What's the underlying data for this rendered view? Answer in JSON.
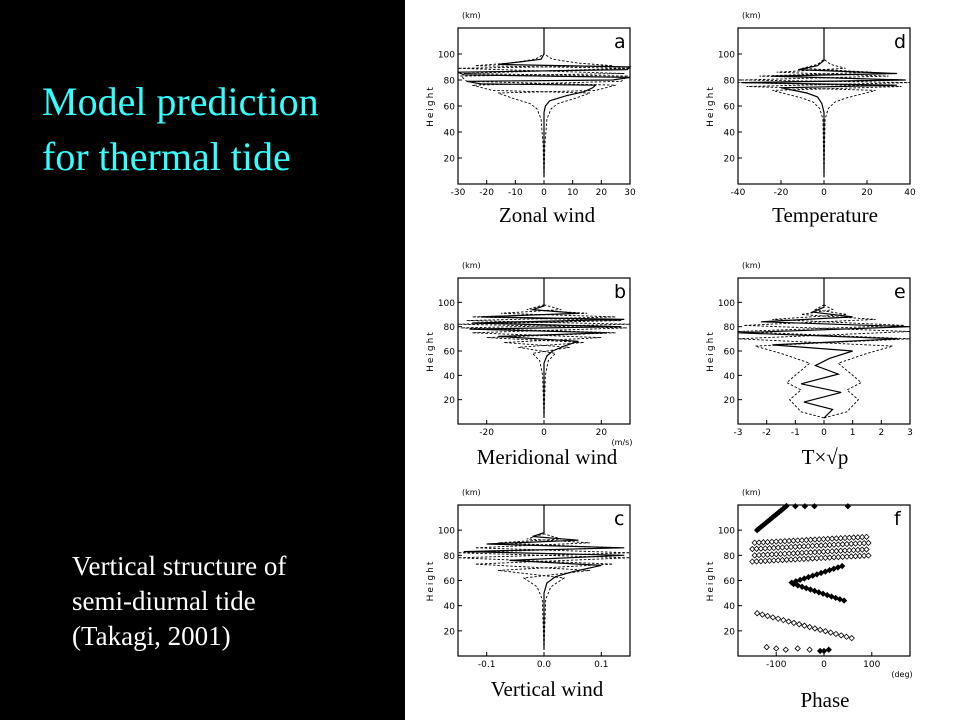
{
  "slide": {
    "title_line1": "Model prediction",
    "title_line2": "for thermal tide",
    "subtitle_line1": "Vertical structure of",
    "subtitle_line2": "semi-diurnal tide",
    "subtitle_line3": "(Takagi, 2001)",
    "colors": {
      "background": "#000000",
      "title": "#33ffff",
      "subtitle": "#ffffff",
      "figure_bg": "#ffffff"
    }
  },
  "chart_data": [
    {
      "type": "line",
      "panel_letter": "a",
      "caption": "Zonal wind",
      "height_unit": "(km)",
      "ylabel": "Height",
      "xunit": "",
      "xlim": [
        -30,
        30
      ],
      "xticks": [
        -30,
        -20,
        -10,
        0,
        10,
        20,
        30
      ],
      "ylim": [
        0,
        120
      ],
      "yticks": [
        20,
        40,
        60,
        80,
        100
      ],
      "series": [
        {
          "style": "solid",
          "points": [
            [
              0,
              5
            ],
            [
              0,
              30
            ],
            [
              0,
              55
            ],
            [
              0.5,
              60
            ],
            [
              2,
              64
            ],
            [
              8,
              68
            ],
            [
              14,
              71
            ],
            [
              17,
              74
            ],
            [
              18,
              76
            ],
            [
              -22,
              77
            ],
            [
              -27,
              79
            ],
            [
              24,
              80
            ],
            [
              30,
              82
            ],
            [
              -28,
              84
            ],
            [
              -30,
              86
            ],
            [
              29,
              88
            ],
            [
              30,
              90
            ],
            [
              -16,
              92
            ],
            [
              -8,
              94
            ],
            [
              -1,
              96
            ],
            [
              0,
              100
            ],
            [
              0,
              120
            ]
          ]
        },
        {
          "style": "dashed",
          "points": [
            [
              0,
              5
            ],
            [
              0.3,
              30
            ],
            [
              1,
              50
            ],
            [
              2.5,
              58
            ],
            [
              5,
              62
            ],
            [
              11,
              66
            ],
            [
              16,
              70
            ],
            [
              -18,
              72
            ],
            [
              -25,
              76
            ],
            [
              27,
              79
            ],
            [
              29,
              83
            ],
            [
              -28,
              85
            ],
            [
              30,
              89
            ],
            [
              -24,
              91
            ],
            [
              -12,
              93
            ],
            [
              -3,
              96
            ],
            [
              0,
              100
            ]
          ]
        },
        {
          "style": "dashed",
          "points": [
            [
              0,
              5
            ],
            [
              -0.3,
              30
            ],
            [
              -1,
              50
            ],
            [
              -2.5,
              58
            ],
            [
              -5,
              62
            ],
            [
              -11,
              66
            ],
            [
              -16,
              70
            ],
            [
              18,
              72
            ],
            [
              25,
              76
            ],
            [
              -27,
              79
            ],
            [
              -29,
              83
            ],
            [
              28,
              85
            ],
            [
              -30,
              89
            ],
            [
              24,
              91
            ],
            [
              12,
              93
            ],
            [
              3,
              96
            ],
            [
              0,
              100
            ]
          ]
        }
      ]
    },
    {
      "type": "line",
      "panel_letter": "d",
      "caption": "Temperature",
      "height_unit": "(km)",
      "ylabel": "Height",
      "xunit": "",
      "xlim": [
        -40,
        40
      ],
      "xticks": [
        -40,
        -20,
        0,
        20,
        40
      ],
      "ylim": [
        0,
        120
      ],
      "yticks": [
        20,
        40,
        60,
        80,
        100
      ],
      "series": [
        {
          "style": "solid",
          "points": [
            [
              0,
              5
            ],
            [
              0,
              55
            ],
            [
              -1,
              62
            ],
            [
              -3,
              67
            ],
            [
              -8,
              70
            ],
            [
              -14,
              72
            ],
            [
              -20,
              74
            ],
            [
              34,
              76
            ],
            [
              -38,
              78
            ],
            [
              38,
              80
            ],
            [
              -24,
              83
            ],
            [
              34,
              85
            ],
            [
              -12,
              88
            ],
            [
              -3,
              91
            ],
            [
              0,
              95
            ],
            [
              0,
              120
            ]
          ]
        },
        {
          "style": "dashed",
          "points": [
            [
              0,
              5
            ],
            [
              0.5,
              50
            ],
            [
              2,
              58
            ],
            [
              5,
              63
            ],
            [
              10,
              66
            ],
            [
              17,
              69
            ],
            [
              24,
              72
            ],
            [
              -36,
              75
            ],
            [
              40,
              78
            ],
            [
              -38,
              80
            ],
            [
              30,
              83
            ],
            [
              -22,
              86
            ],
            [
              10,
              89
            ],
            [
              3,
              92
            ],
            [
              0,
              96
            ]
          ]
        },
        {
          "style": "dashed",
          "points": [
            [
              0,
              5
            ],
            [
              -0.5,
              50
            ],
            [
              -2,
              58
            ],
            [
              -5,
              63
            ],
            [
              -10,
              66
            ],
            [
              -17,
              69
            ],
            [
              -24,
              72
            ],
            [
              36,
              75
            ],
            [
              -40,
              78
            ],
            [
              38,
              80
            ],
            [
              -30,
              83
            ],
            [
              22,
              86
            ],
            [
              -10,
              89
            ],
            [
              -3,
              92
            ],
            [
              0,
              96
            ]
          ]
        }
      ]
    },
    {
      "type": "line",
      "panel_letter": "b",
      "caption": "Meridional wind",
      "height_unit": "(km)",
      "ylabel": "Height",
      "xunit": "(m/s)",
      "xlim": [
        -30,
        30
      ],
      "xticks": [
        -20,
        0,
        20
      ],
      "ylim": [
        0,
        120
      ],
      "yticks": [
        20,
        40,
        60,
        80,
        100
      ],
      "series": [
        {
          "style": "solid",
          "points": [
            [
              0,
              5
            ],
            [
              0,
              50
            ],
            [
              1,
              56
            ],
            [
              3,
              60
            ],
            [
              7,
              64
            ],
            [
              12,
              68
            ],
            [
              -16,
              72
            ],
            [
              22,
              75
            ],
            [
              -26,
              78
            ],
            [
              27,
              80
            ],
            [
              -25,
              83
            ],
            [
              28,
              86
            ],
            [
              -22,
              88
            ],
            [
              12,
              91
            ],
            [
              -4,
              94
            ],
            [
              0,
              97
            ],
            [
              0,
              120
            ]
          ]
        },
        {
          "style": "dashed",
          "points": [
            [
              0,
              5
            ],
            [
              0.5,
              40
            ],
            [
              1.5,
              52
            ],
            [
              4,
              58
            ],
            [
              -9,
              63
            ],
            [
              14,
              67
            ],
            [
              -20,
              71
            ],
            [
              25,
              75
            ],
            [
              -29,
              79
            ],
            [
              30,
              82
            ],
            [
              -27,
              85
            ],
            [
              25,
              88
            ],
            [
              -15,
              91
            ],
            [
              6,
              94
            ],
            [
              0,
              98
            ]
          ]
        },
        {
          "style": "dashed",
          "points": [
            [
              0,
              5
            ],
            [
              -0.5,
              40
            ],
            [
              -1.5,
              52
            ],
            [
              -4,
              58
            ],
            [
              9,
              63
            ],
            [
              -14,
              67
            ],
            [
              20,
              71
            ],
            [
              -25,
              75
            ],
            [
              29,
              79
            ],
            [
              -30,
              82
            ],
            [
              27,
              85
            ],
            [
              -25,
              88
            ],
            [
              15,
              91
            ],
            [
              -6,
              94
            ],
            [
              0,
              98
            ]
          ]
        }
      ]
    },
    {
      "type": "line",
      "panel_letter": "e",
      "caption": "T×√p",
      "height_unit": "(km)",
      "ylabel": "Height",
      "xunit": "",
      "xlim": [
        -3,
        3
      ],
      "xticks": [
        -3,
        -2,
        -1,
        0,
        1,
        2,
        3
      ],
      "ylim": [
        0,
        120
      ],
      "yticks": [
        20,
        40,
        60,
        80,
        100
      ],
      "series": [
        {
          "style": "solid",
          "points": [
            [
              0,
              5
            ],
            [
              0.3,
              12
            ],
            [
              -0.7,
              18
            ],
            [
              0.6,
              26
            ],
            [
              -0.8,
              33
            ],
            [
              0.5,
              41
            ],
            [
              -0.3,
              48
            ],
            [
              0.2,
              54
            ],
            [
              1,
              60
            ],
            [
              -1.8,
              65
            ],
            [
              2.6,
              70
            ],
            [
              -3,
              75
            ],
            [
              3,
              80
            ],
            [
              -2.2,
              84
            ],
            [
              1,
              88
            ],
            [
              -0.4,
              92
            ],
            [
              0,
              96
            ],
            [
              0,
              120
            ]
          ]
        },
        {
          "style": "dashed",
          "points": [
            [
              0,
              5
            ],
            [
              0.8,
              10
            ],
            [
              1.2,
              20
            ],
            [
              0.8,
              28
            ],
            [
              1.3,
              34
            ],
            [
              0.9,
              42
            ],
            [
              0.5,
              50
            ],
            [
              1.5,
              58
            ],
            [
              2.4,
              64
            ],
            [
              -3,
              70
            ],
            [
              3,
              76
            ],
            [
              -2.8,
              81
            ],
            [
              1.8,
              86
            ],
            [
              -0.8,
              90
            ],
            [
              0.3,
              94
            ],
            [
              0,
              98
            ]
          ]
        },
        {
          "style": "dashed",
          "points": [
            [
              0,
              5
            ],
            [
              -0.8,
              10
            ],
            [
              -1.2,
              20
            ],
            [
              -0.8,
              28
            ],
            [
              -1.3,
              34
            ],
            [
              -0.9,
              42
            ],
            [
              -0.5,
              50
            ],
            [
              -1.5,
              58
            ],
            [
              -2.4,
              64
            ],
            [
              3,
              70
            ],
            [
              -3,
              76
            ],
            [
              2.8,
              81
            ],
            [
              -1.8,
              86
            ],
            [
              0.8,
              90
            ],
            [
              -0.3,
              94
            ],
            [
              0,
              98
            ]
          ]
        }
      ]
    },
    {
      "type": "line",
      "panel_letter": "c",
      "caption": "Vertical wind",
      "height_unit": "(km)",
      "ylabel": "Height",
      "xunit": "",
      "xlim": [
        -0.15,
        0.15
      ],
      "xticks": [
        -0.1,
        0.0,
        0.1
      ],
      "ylim": [
        0,
        120
      ],
      "yticks": [
        20,
        40,
        60,
        80,
        100
      ],
      "series": [
        {
          "style": "solid",
          "points": [
            [
              0,
              5
            ],
            [
              0,
              50
            ],
            [
              0.005,
              58
            ],
            [
              0.02,
              63
            ],
            [
              0.05,
              67
            ],
            [
              0.1,
              72
            ],
            [
              -0.06,
              76
            ],
            [
              0.14,
              80
            ],
            [
              -0.14,
              83
            ],
            [
              0.14,
              86
            ],
            [
              -0.1,
              89
            ],
            [
              0.06,
              92
            ],
            [
              -0.02,
              95
            ],
            [
              0,
              98
            ],
            [
              0,
              120
            ]
          ]
        },
        {
          "style": "dashed",
          "points": [
            [
              0,
              5
            ],
            [
              0.003,
              45
            ],
            [
              0.012,
              55
            ],
            [
              0.035,
              62
            ],
            [
              -0.08,
              68
            ],
            [
              0.12,
              73
            ],
            [
              -0.15,
              78
            ],
            [
              0.15,
              82
            ],
            [
              -0.12,
              86
            ],
            [
              0.08,
              90
            ],
            [
              -0.03,
              93
            ],
            [
              0,
              97
            ]
          ]
        },
        {
          "style": "dashed",
          "points": [
            [
              0,
              5
            ],
            [
              -0.003,
              45
            ],
            [
              -0.012,
              55
            ],
            [
              -0.035,
              62
            ],
            [
              0.08,
              68
            ],
            [
              -0.12,
              73
            ],
            [
              0.15,
              78
            ],
            [
              -0.15,
              82
            ],
            [
              0.12,
              86
            ],
            [
              -0.08,
              90
            ],
            [
              0.03,
              93
            ],
            [
              0,
              97
            ]
          ]
        }
      ]
    },
    {
      "type": "scatter",
      "panel_letter": "f",
      "caption": "Phase",
      "height_unit": "(km)",
      "ylabel": "Height",
      "xunit": "(deg)",
      "xlim": [
        -180,
        180
      ],
      "xticks": [
        -100,
        0,
        100
      ],
      "ylim": [
        0,
        120
      ],
      "yticks": [
        20,
        40,
        60,
        80,
        100
      ],
      "series": [
        {
          "style": "bands",
          "points": []
        }
      ]
    }
  ]
}
